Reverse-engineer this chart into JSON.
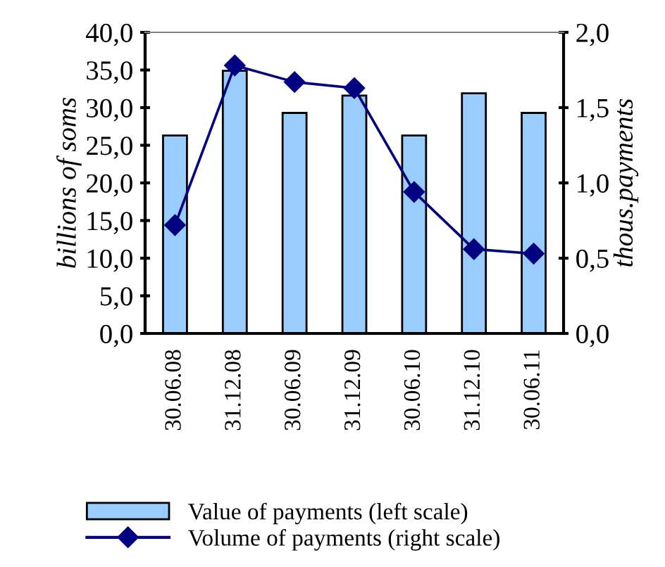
{
  "chart_data": {
    "type": "bar",
    "categories": [
      "30.06.08",
      "31.12.08",
      "30.06.09",
      "31.12.09",
      "30.06.10",
      "31.12.10",
      "30.06.11"
    ],
    "series": [
      {
        "name": "Value of payments (left scale)",
        "color": "#99ccff",
        "values": [
          26.3,
          34.9,
          29.3,
          31.6,
          26.3,
          31.9,
          29.3
        ]
      },
      {
        "name": "Volume of payments (right scale)",
        "type": "line",
        "axis": "y2",
        "color": "#000080",
        "marker": "diamond",
        "values": [
          0.72,
          1.78,
          1.67,
          1.63,
          0.94,
          0.56,
          0.53
        ]
      }
    ],
    "ylabel": "billions of soms",
    "y2label": "thous.payments",
    "ylim": [
      0,
      40
    ],
    "yticks": [
      {
        "value": 0,
        "label": "0,0"
      },
      {
        "value": 5,
        "label": "5,0"
      },
      {
        "value": 10,
        "label": "10,0"
      },
      {
        "value": 15,
        "label": "15,0"
      },
      {
        "value": 20,
        "label": "20,0"
      },
      {
        "value": 25,
        "label": "25,0"
      },
      {
        "value": 30,
        "label": "30,0"
      },
      {
        "value": 35,
        "label": "35,0"
      },
      {
        "value": 40,
        "label": "40,0"
      }
    ],
    "y2lim": [
      0,
      2
    ],
    "y2ticks": [
      {
        "value": 0,
        "label": "0,0"
      },
      {
        "value": 0.5,
        "label": "0,5"
      },
      {
        "value": 1,
        "label": "1,0"
      },
      {
        "value": 1.5,
        "label": "1,5"
      },
      {
        "value": 2,
        "label": "2,0"
      }
    ],
    "grid": false,
    "legend": "bottom"
  }
}
